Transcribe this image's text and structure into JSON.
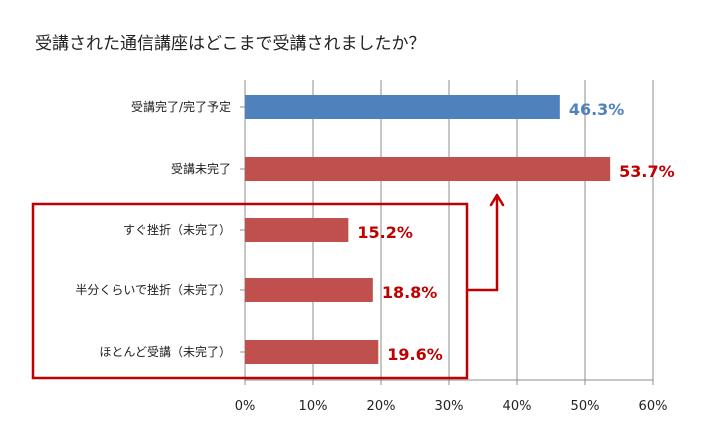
{
  "chart_data": {
    "type": "bar",
    "orientation": "horizontal",
    "title": "受講された通信講座はどこまで受講されましたか？",
    "xlabel": "",
    "ylabel": "",
    "xlim": [
      0,
      60
    ],
    "x_ticks": [
      "0%",
      "10%",
      "20%",
      "30%",
      "40%",
      "50%",
      "60%"
    ],
    "grid": true,
    "categories": [
      "受講完了/完了予定",
      "受講未完了",
      "すぐ挫折（未完了）",
      "半分くらいで挫折（未完了）",
      "ほとんど受講（未完了）"
    ],
    "values": [
      46.3,
      53.7,
      15.2,
      18.8,
      19.6
    ],
    "value_labels": [
      "46.3%",
      "53.7%",
      "15.2%",
      "18.8%",
      "19.6%"
    ],
    "colors": [
      "#4f81bd",
      "#c0504d",
      "#c0504d",
      "#c0504d",
      "#c0504d"
    ],
    "label_colors": [
      "#4f81bd",
      "#c00000",
      "#c00000",
      "#c00000",
      "#c00000"
    ],
    "annotation": {
      "type": "bracket-arrow",
      "group": [
        2,
        3,
        4
      ],
      "points_to": 1,
      "color": "#c00000"
    }
  }
}
